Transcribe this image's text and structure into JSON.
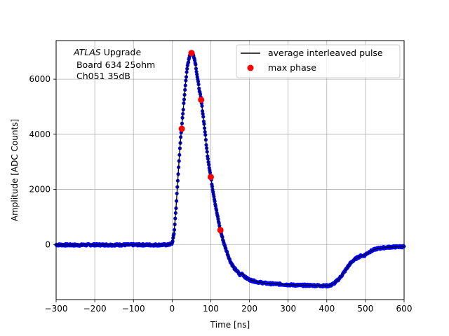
{
  "chart_data": {
    "type": "scatter",
    "xlabel": "Time [ns]",
    "ylabel": "Amplitude [ADC Counts]",
    "xlim": [
      -300,
      600
    ],
    "ylim": [
      -2000,
      7400
    ],
    "xticks": [
      -300,
      -200,
      -100,
      0,
      100,
      200,
      300,
      400,
      500,
      600
    ],
    "xtick_labels": [
      "−300",
      "−200",
      "−100",
      "0",
      "100",
      "200",
      "300",
      "400",
      "500",
      "600"
    ],
    "yticks": [
      0,
      2000,
      4000,
      6000
    ],
    "ytick_labels": [
      "0",
      "2000",
      "4000",
      "6000"
    ],
    "grid": true,
    "legend_position": "upper right",
    "annotation": {
      "line1_italic": "ATLAS",
      "line1_rest": " Upgrade",
      "line2": " Board 634 25ohm",
      "line3": " Ch051 35dB"
    },
    "series": [
      {
        "name": "average interleaved pulse",
        "style": "line",
        "color": "#000000",
        "marker_color": "#0000ff",
        "x": [
          -300,
          -250,
          -200,
          -150,
          -100,
          -50,
          -10,
          0,
          5,
          10,
          15,
          20,
          25,
          30,
          35,
          40,
          45,
          50,
          55,
          60,
          65,
          70,
          75,
          80,
          85,
          90,
          95,
          100,
          105,
          110,
          115,
          120,
          125,
          130,
          135,
          140,
          145,
          150,
          160,
          170,
          175,
          180,
          185,
          190,
          200,
          220,
          250,
          280,
          300,
          330,
          350,
          380,
          400,
          410,
          420,
          430,
          440,
          450,
          460,
          470,
          480,
          490,
          495,
          500,
          510,
          520,
          530,
          550,
          570,
          580,
          600
        ],
        "y": [
          -10,
          -20,
          -10,
          -15,
          -10,
          -15,
          -10,
          40,
          400,
          1300,
          2400,
          3500,
          4300,
          5100,
          5900,
          6500,
          6850,
          6960,
          6900,
          6600,
          6100,
          5650,
          5250,
          4700,
          4100,
          3400,
          2900,
          2450,
          2000,
          1600,
          1200,
          850,
          500,
          250,
          0,
          -200,
          -400,
          -600,
          -850,
          -1000,
          -1100,
          -1050,
          -1120,
          -1200,
          -1280,
          -1360,
          -1420,
          -1440,
          -1460,
          -1480,
          -1480,
          -1490,
          -1500,
          -1480,
          -1400,
          -1270,
          -1100,
          -900,
          -700,
          -560,
          -470,
          -400,
          -430,
          -360,
          -270,
          -200,
          -150,
          -110,
          -90,
          -85,
          -75
        ]
      },
      {
        "name": "max phase",
        "style": "points",
        "color": "#ff0000",
        "x": [
          25,
          50,
          75,
          100,
          125
        ],
        "y": [
          4200,
          6950,
          5250,
          2450,
          520
        ]
      }
    ]
  }
}
